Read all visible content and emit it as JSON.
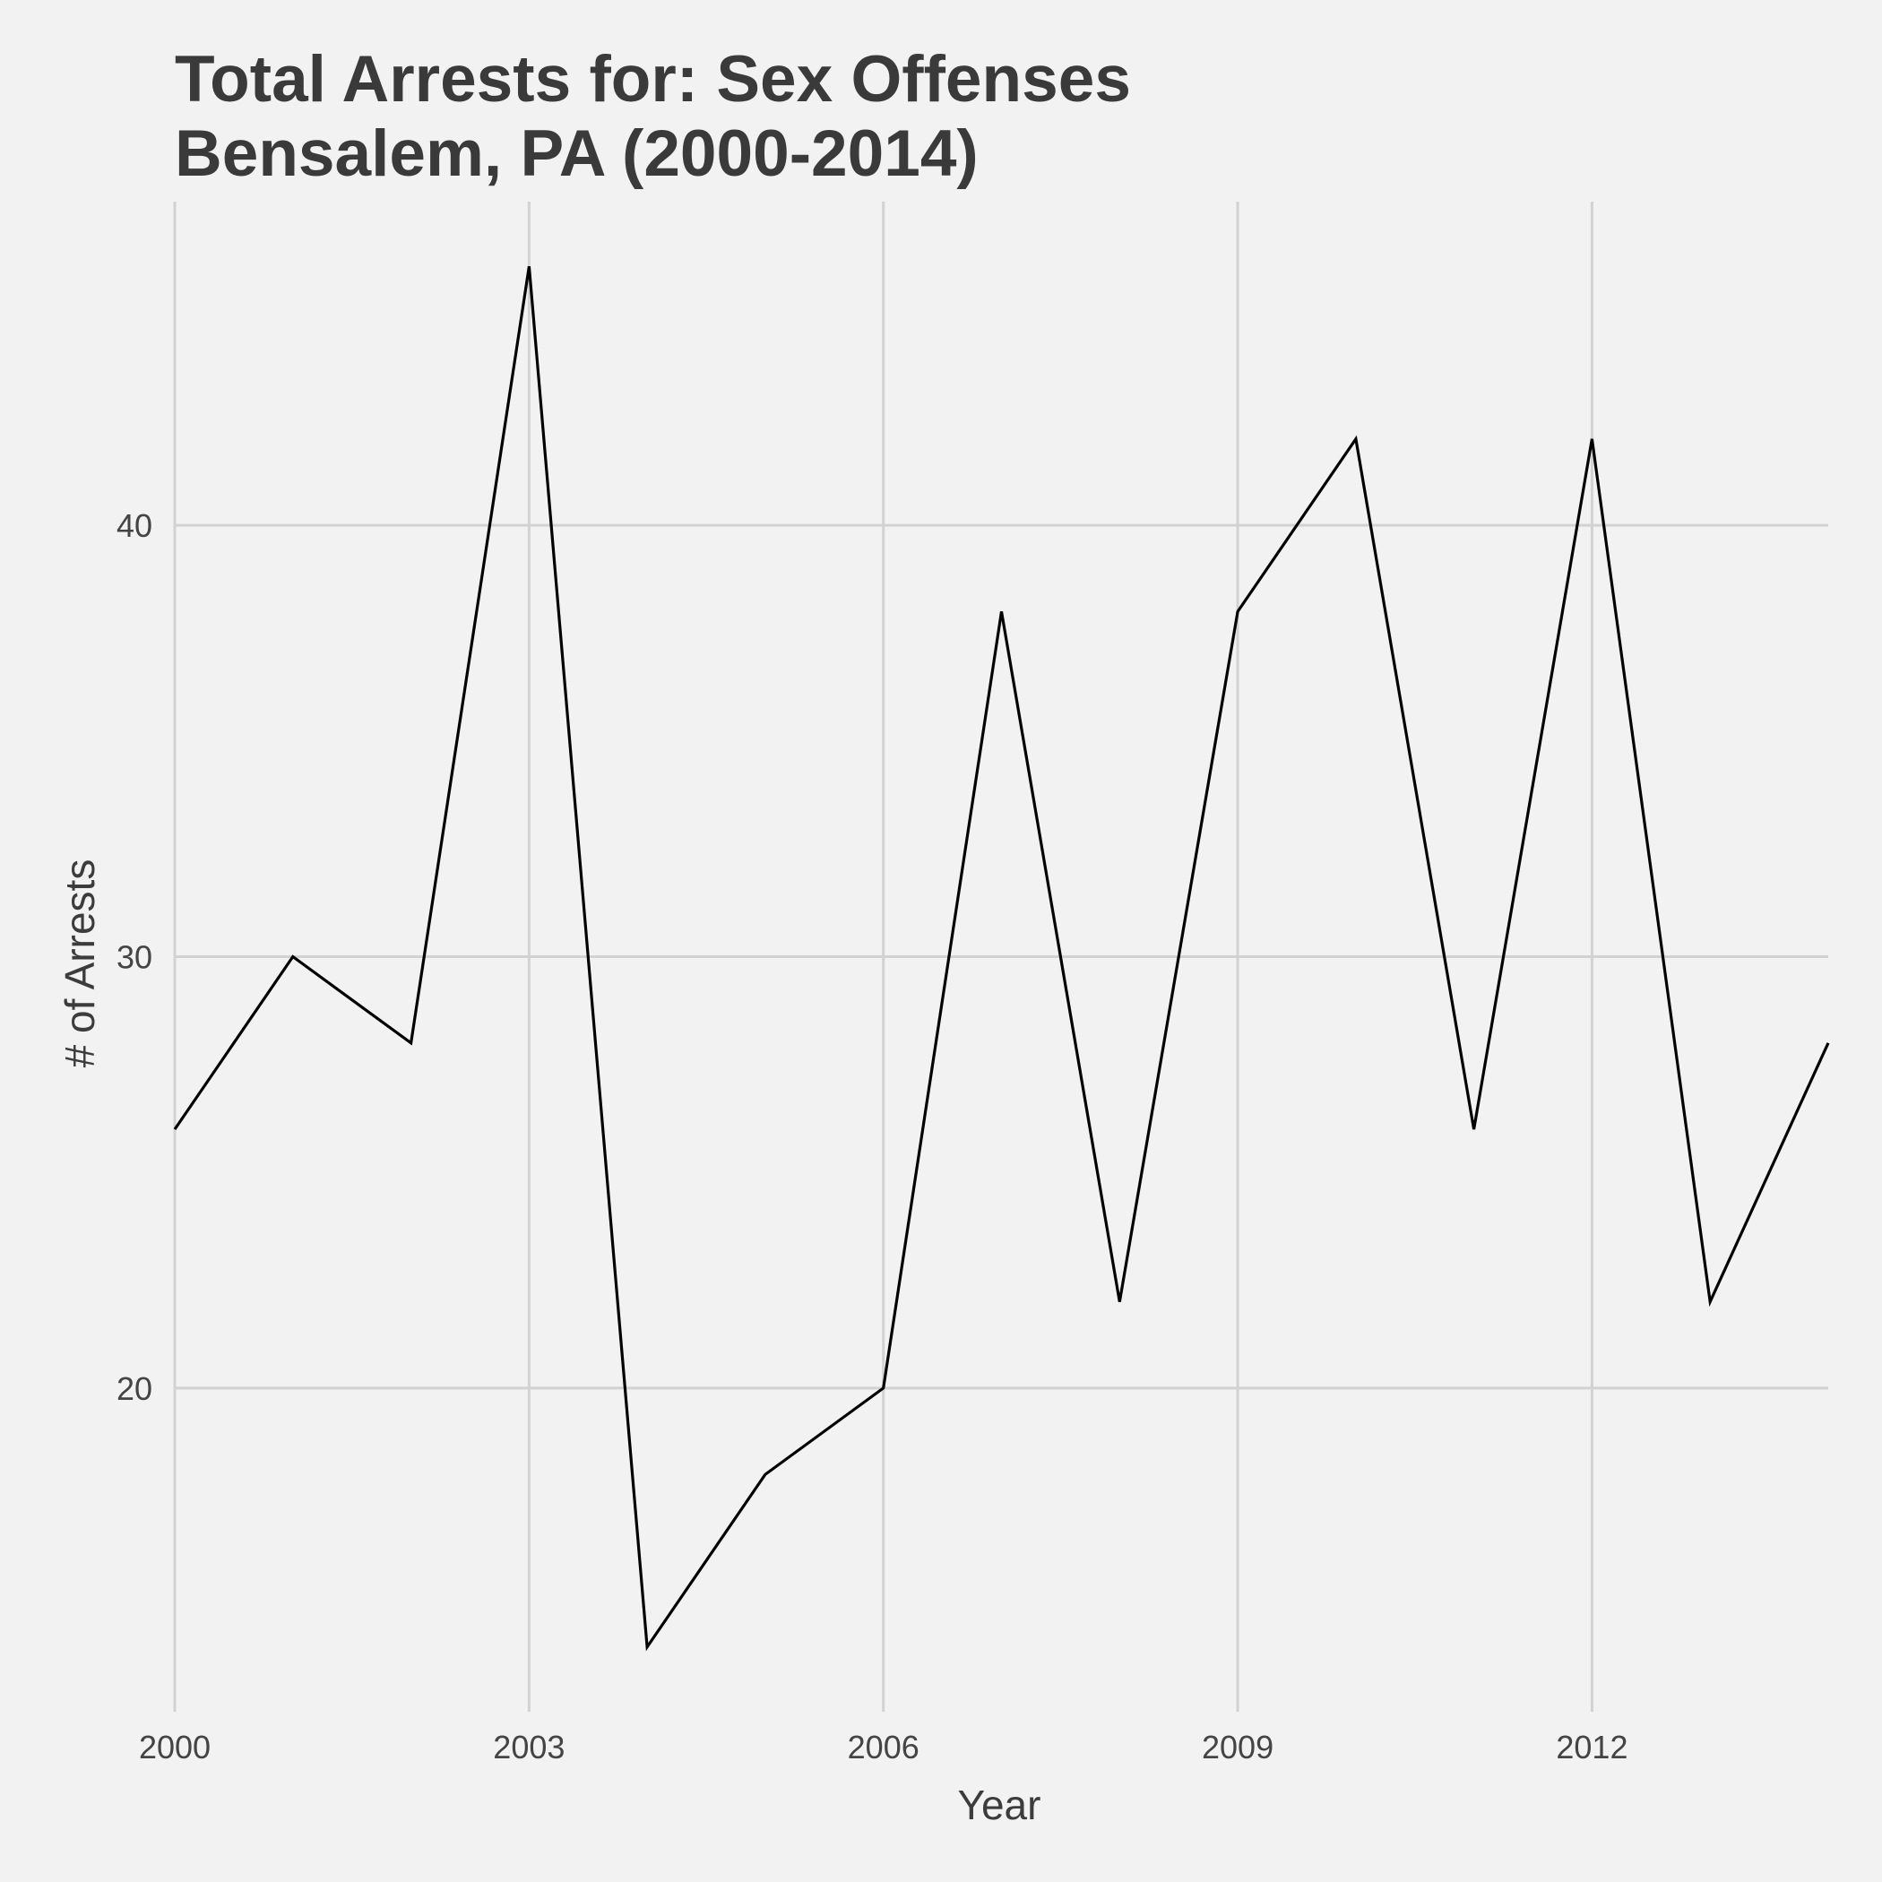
{
  "chart_data": {
    "type": "line",
    "title": "Total Arrests for: Sex Offenses",
    "subtitle": "Bensalem, PA (2000-2014)",
    "xlabel": "Year",
    "ylabel": "# of Arrests",
    "x": [
      2000,
      2001,
      2002,
      2003,
      2004,
      2005,
      2006,
      2007,
      2008,
      2009,
      2010,
      2011,
      2012,
      2013,
      2014
    ],
    "series": [
      {
        "values": [
          26,
          30,
          28,
          46,
          14,
          18,
          20,
          38,
          22,
          38,
          42,
          26,
          42,
          22,
          28
        ]
      }
    ],
    "x_ticks": [
      2000,
      2003,
      2006,
      2009,
      2012
    ],
    "x_tick_labels": [
      "2000",
      "2003",
      "2006",
      "2009",
      "2012"
    ],
    "y_ticks": [
      20,
      30,
      40
    ],
    "y_tick_labels": [
      "20",
      "30",
      "40"
    ],
    "xlim": [
      2000,
      2014
    ],
    "ylim": [
      12.5,
      47.5
    ],
    "grid": true,
    "colors": {
      "background": "#f2f2f2",
      "grid": "#d2d2d2",
      "line": "#000000",
      "text": "#3c3c3c"
    }
  }
}
